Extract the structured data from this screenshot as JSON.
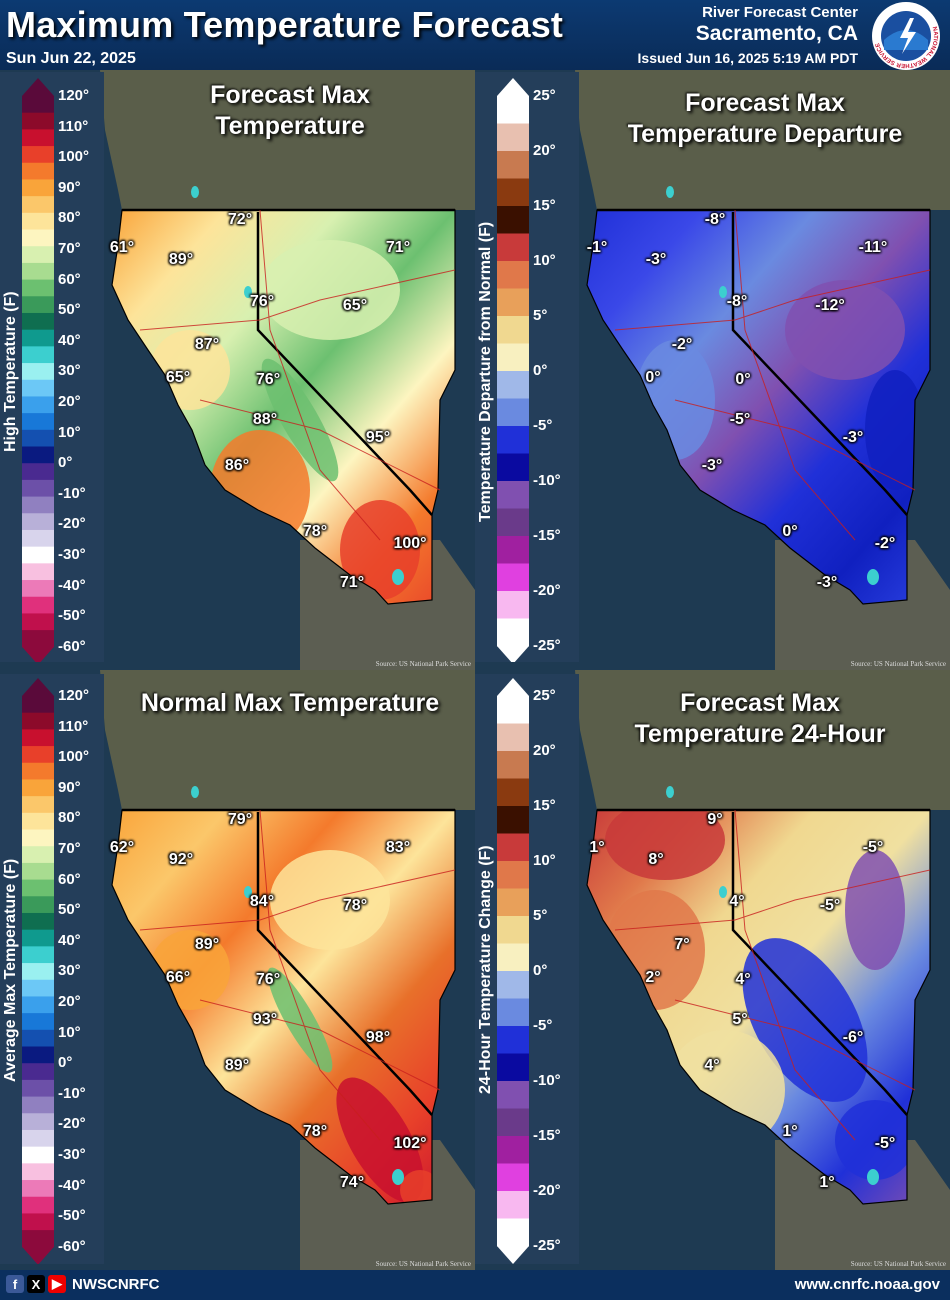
{
  "header": {
    "title": "Maximum Temperature Forecast",
    "valid_date": "Sun Jun 22, 2025",
    "office": "River Forecast Center",
    "location": "Sacramento, CA",
    "issued": "Issued Jun 16, 2025 5:19 AM PDT",
    "logo_text": "NATIONAL WEATHER SERVICE"
  },
  "footer": {
    "handle": "NWSCNRFC",
    "url": "www.cnrfc.noaa.gov"
  },
  "legends": {
    "temp_upper": {
      "title": "High Temperature (F)",
      "ticks": [
        "120°",
        "110°",
        "100°",
        "90°",
        "80°",
        "70°",
        "60°",
        "50°",
        "40°",
        "30°",
        "20°",
        "10°",
        "0°",
        "-10°",
        "-20°",
        "-30°",
        "-40°",
        "-50°",
        "-60°"
      ]
    },
    "temp_lower": {
      "title": "Average Max Temperature (F)",
      "ticks": [
        "120°",
        "110°",
        "100°",
        "90°",
        "80°",
        "70°",
        "60°",
        "50°",
        "40°",
        "30°",
        "20°",
        "10°",
        "0°",
        "-10°",
        "-20°",
        "-30°",
        "-40°",
        "-50°",
        "-60°"
      ]
    },
    "dep_upper": {
      "title": "Temperature Departure from Normal (F)",
      "ticks": [
        "25°",
        "20°",
        "15°",
        "10°",
        "5°",
        "0°",
        "-5°",
        "-10°",
        "-15°",
        "-20°",
        "-25°"
      ]
    },
    "dep_lower": {
      "title": "24-Hour Temperature Change (F)",
      "ticks": [
        "25°",
        "20°",
        "15°",
        "10°",
        "5°",
        "0°",
        "-5°",
        "-10°",
        "-15°",
        "-20°",
        "-25°"
      ]
    }
  },
  "panels": [
    {
      "title_lines": [
        "Forecast Max",
        "Temperature"
      ],
      "labels": [
        "61°",
        "89°",
        "72°",
        "71°",
        "76°",
        "65°",
        "87°",
        "65°",
        "76°",
        "88°",
        "95°",
        "86°",
        "78°",
        "100°",
        "71°"
      ],
      "source": "Source: US National Park Service"
    },
    {
      "title_lines": [
        "Forecast Max",
        "Temperature Departure"
      ],
      "labels": [
        "-1°",
        "-3°",
        "-8°",
        "-11°",
        "-8°",
        "-12°",
        "-2°",
        "0°",
        "0°",
        "-5°",
        "-3°",
        "-3°",
        "0°",
        "-2°",
        "-3°"
      ],
      "source": "Source: US National Park Service"
    },
    {
      "title_lines": [
        "Normal Max Temperature"
      ],
      "labels": [
        "62°",
        "92°",
        "79°",
        "83°",
        "84°",
        "78°",
        "89°",
        "66°",
        "76°",
        "93°",
        "98°",
        "89°",
        "78°",
        "102°",
        "74°"
      ],
      "source": "Source: US National Park Service"
    },
    {
      "title_lines": [
        "Forecast Max",
        "Temperature 24-Hour"
      ],
      "labels": [
        "1°",
        "8°",
        "9°",
        "-5°",
        "4°",
        "-5°",
        "7°",
        "2°",
        "4°",
        "5°",
        "-6°",
        "4°",
        "1°",
        "-5°",
        "1°"
      ],
      "source": "Source: US National Park Service"
    }
  ],
  "colors": {
    "temp_scale": [
      "#5a0a3a",
      "#8c0a2a",
      "#c8102e",
      "#e8402a",
      "#f47a2c",
      "#f9a43a",
      "#fbc76a",
      "#fde49a",
      "#fdf5c0",
      "#d8f0b0",
      "#a8dc90",
      "#6cc070",
      "#3a9a5a",
      "#0f6e50",
      "#0f9a8e",
      "#3ccfcf",
      "#9af0f0",
      "#6cc8f6",
      "#3aa0ec",
      "#1878d8",
      "#1450b0",
      "#0a1a80",
      "#4a2a90",
      "#6c50a8",
      "#9080c0",
      "#b8b0d8",
      "#d8d4ec",
      "#ffffff",
      "#f8c0e0",
      "#ec7ab8",
      "#e0307c",
      "#c0104c",
      "#8c0a3c"
    ],
    "dep_scale": [
      "#ffffff",
      "#e8c0b0",
      "#c87a50",
      "#8a3a10",
      "#3a1000",
      "#c83a3a",
      "#e0784a",
      "#e8a05a",
      "#f0d890",
      "#f8f0c0",
      "#a0b8e8",
      "#6a8ae0",
      "#2030d8",
      "#0a0aa0",
      "#8050b0",
      "#6a3a8a",
      "#a020a0",
      "#e040e0",
      "#f8b8f0",
      "#ffffff"
    ],
    "ocean": "#1e3a52"
  }
}
